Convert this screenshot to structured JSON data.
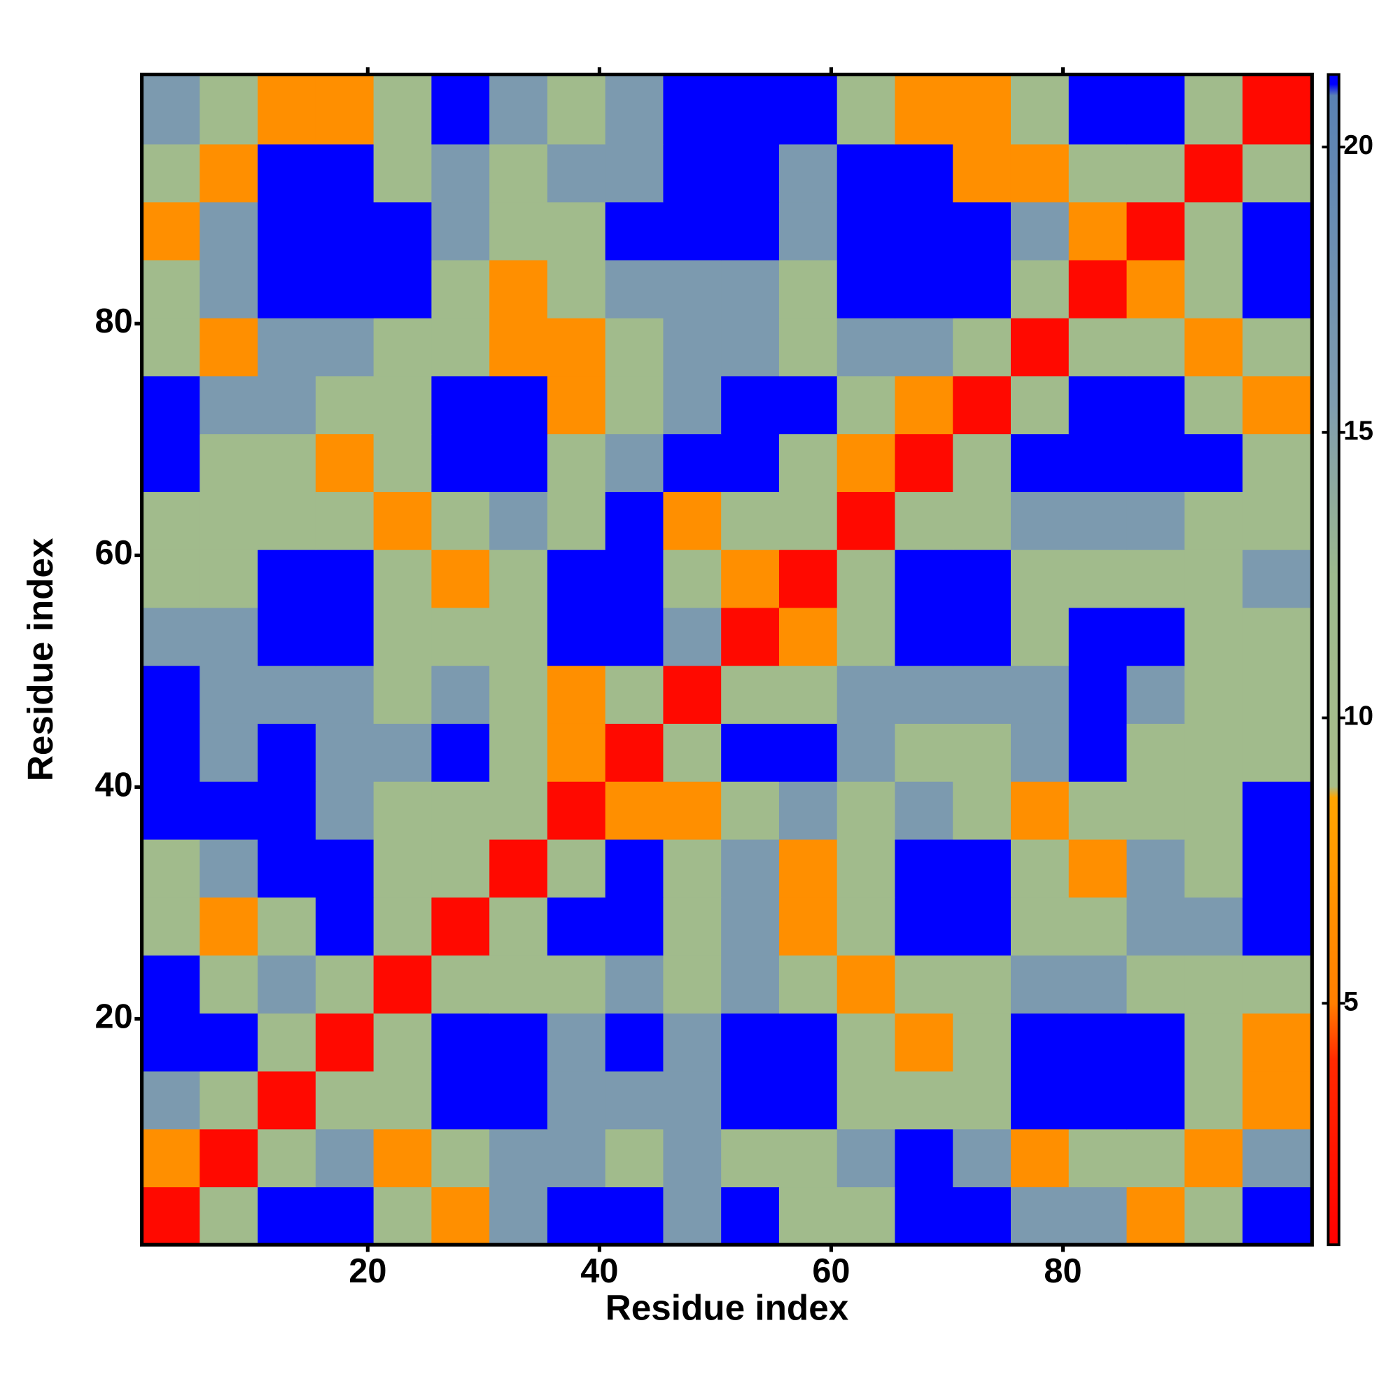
{
  "chart_data": {
    "type": "heatmap",
    "x_label": "Residue index",
    "y_label": "Residue index",
    "xbins": [
      0.5,
      5.5,
      10.5,
      15.5,
      20.5,
      25.5,
      30.5,
      35.5,
      40.5,
      45.5,
      50.5,
      55.5,
      60.5,
      65.5,
      70.5,
      75.5,
      80.5,
      85.5,
      90.5,
      95.5,
      101.5
    ],
    "ybins": [
      0.5,
      5.5,
      10.5,
      15.5,
      20.5,
      25.5,
      30.5,
      35.5,
      40.5,
      45.5,
      50.5,
      55.5,
      60.5,
      65.5,
      70.5,
      75.5,
      80.5,
      85.5,
      90.5,
      95.5,
      101.5
    ],
    "xlim": [
      0.5,
      101.5
    ],
    "ylim": [
      0.5,
      101.5
    ],
    "xticks": [
      20,
      40,
      60,
      80
    ],
    "yticks": [
      20,
      40,
      60,
      80
    ],
    "clim": [
      0.77,
      21.27
    ],
    "cticks": [
      5,
      10,
      15,
      20
    ],
    "colorscale": [
      [
        0.77,
        "#ff0000"
      ],
      [
        4,
        "#ff2a00"
      ],
      [
        5,
        "#ff7f00"
      ],
      [
        8.6,
        "#ffa500"
      ],
      [
        8.8,
        "#a8bd8a"
      ],
      [
        12.5,
        "#9db98e"
      ],
      [
        15.5,
        "#7f9caf"
      ],
      [
        20.9,
        "#5a82b4"
      ],
      [
        21.1,
        "#0000ff"
      ],
      [
        21.27,
        "#0000ff"
      ]
    ],
    "z": [
      [
        1.5,
        11,
        21.2,
        21.2,
        11,
        6.5,
        16,
        21.2,
        21.2,
        16,
        21.2,
        11,
        11,
        21.2,
        21.2,
        16,
        16,
        6.5,
        11,
        21.2
      ],
      [
        6.5,
        1.5,
        11,
        16,
        6.5,
        11,
        16,
        16,
        11,
        16,
        11,
        11,
        16,
        21.2,
        16,
        6.5,
        11,
        11,
        6.5,
        16
      ],
      [
        16,
        11,
        1.5,
        11,
        11,
        21.2,
        21.2,
        16,
        16,
        16,
        21.2,
        21.2,
        11,
        11,
        11,
        21.2,
        21.2,
        21.2,
        11,
        6.5
      ],
      [
        21.2,
        21.2,
        11,
        1.5,
        11,
        21.2,
        21.2,
        16,
        21.2,
        16,
        21.2,
        21.2,
        11,
        6.5,
        11,
        21.2,
        21.2,
        21.2,
        11,
        6.5
      ],
      [
        21.2,
        11,
        16,
        11,
        1.5,
        11,
        11,
        11,
        16,
        11,
        16,
        11,
        6.5,
        11,
        11,
        16,
        16,
        11,
        11,
        11
      ],
      [
        11,
        6.5,
        11,
        21.2,
        11,
        1.5,
        11,
        21.2,
        21.2,
        11,
        16,
        6.5,
        11,
        21.2,
        21.2,
        11,
        11,
        16,
        16,
        21.2
      ],
      [
        11,
        16,
        21.2,
        21.2,
        11,
        11,
        1.5,
        11,
        21.2,
        11,
        16,
        6.5,
        11,
        21.2,
        21.2,
        11,
        6.5,
        16,
        11,
        21.2
      ],
      [
        21.2,
        21.2,
        21.2,
        16,
        11,
        11,
        11,
        1.5,
        6.5,
        6.5,
        11,
        16,
        11,
        16,
        11,
        6.5,
        11,
        11,
        11,
        21.2
      ],
      [
        21.2,
        16,
        21.2,
        16,
        16,
        21.2,
        11,
        6.5,
        1.5,
        11,
        21.2,
        21.2,
        16,
        11,
        11,
        16,
        21.2,
        11,
        11,
        11
      ],
      [
        21.2,
        16,
        16,
        16,
        11,
        16,
        11,
        6.5,
        11,
        1.5,
        11,
        11,
        16,
        16,
        16,
        16,
        21.2,
        16,
        11,
        11
      ],
      [
        16,
        16,
        21.2,
        21.2,
        11,
        11,
        11,
        21.2,
        21.2,
        16,
        1.5,
        6.5,
        11,
        21.2,
        21.2,
        11,
        21.2,
        21.2,
        11,
        11
      ],
      [
        11,
        11,
        21.2,
        21.2,
        11,
        6.5,
        11,
        21.2,
        21.2,
        11,
        6.5,
        1.5,
        11,
        21.2,
        21.2,
        11,
        11,
        11,
        11,
        16
      ],
      [
        11,
        11,
        11,
        11,
        6.5,
        11,
        16,
        11,
        21.2,
        6.5,
        11,
        11,
        1.5,
        11,
        11,
        16,
        16,
        16,
        11,
        11
      ],
      [
        21.2,
        11,
        11,
        6.5,
        11,
        21.2,
        21.2,
        11,
        16,
        21.2,
        21.2,
        11,
        6.5,
        1.5,
        11,
        21.2,
        21.2,
        21.2,
        21.2,
        11
      ],
      [
        21.2,
        16,
        16,
        11,
        11,
        21.2,
        21.2,
        6.5,
        11,
        16,
        21.2,
        21.2,
        11,
        6.5,
        1.5,
        11,
        21.2,
        21.2,
        11,
        6.5
      ],
      [
        11,
        6.5,
        16,
        16,
        11,
        11,
        6.5,
        6.5,
        11,
        16,
        16,
        11,
        16,
        16,
        11,
        1.5,
        11,
        11,
        6.5,
        11
      ],
      [
        11,
        16,
        21.2,
        21.2,
        21.2,
        11,
        6.5,
        11,
        16,
        16,
        16,
        11,
        21.2,
        21.2,
        21.2,
        11,
        1.5,
        6.5,
        11,
        21.2
      ],
      [
        6.5,
        16,
        21.2,
        21.2,
        21.2,
        16,
        11,
        11,
        21.2,
        21.2,
        21.2,
        16,
        21.2,
        21.2,
        21.2,
        16,
        6.5,
        1.5,
        11,
        21.2
      ],
      [
        11,
        6.5,
        21.2,
        21.2,
        11,
        16,
        11,
        16,
        16,
        21.2,
        21.2,
        16,
        21.2,
        21.2,
        6.5,
        6.5,
        11,
        11,
        1.5,
        11
      ],
      [
        16,
        11,
        6.5,
        6.5,
        11,
        21.2,
        16,
        11,
        16,
        21.2,
        21.2,
        21.2,
        11,
        6.5,
        6.5,
        11,
        21.2,
        21.2,
        11,
        1.5
      ]
    ]
  }
}
